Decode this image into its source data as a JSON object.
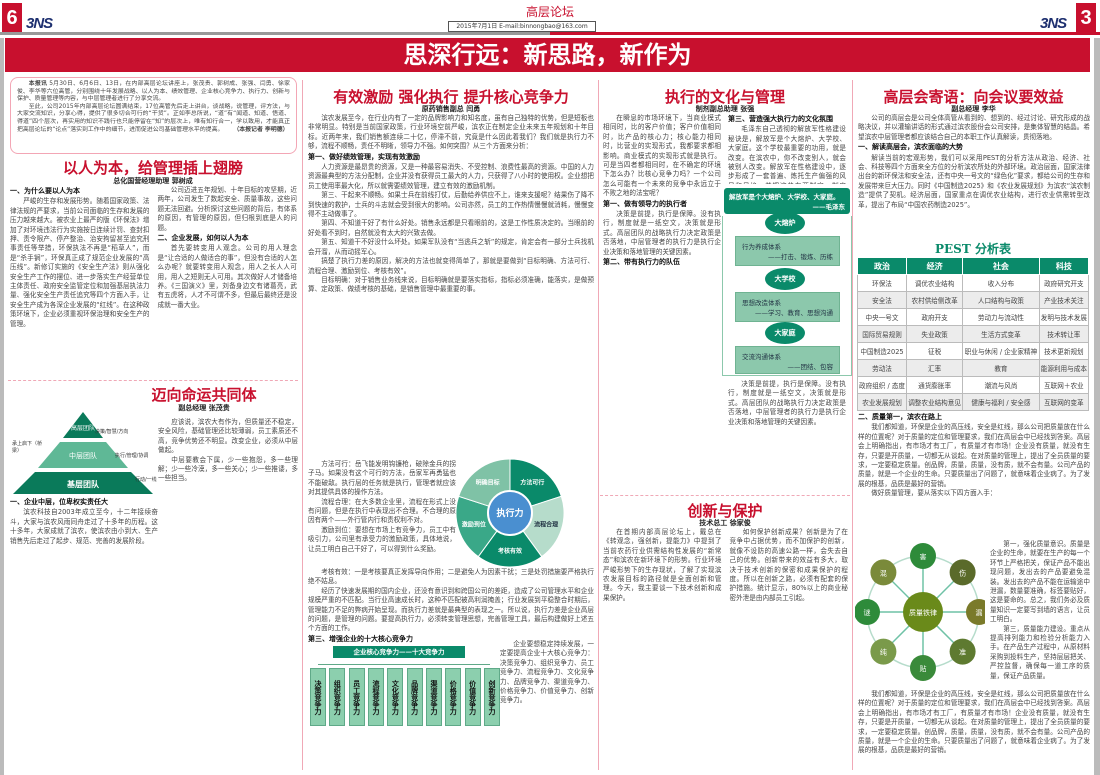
{
  "header": {
    "page_left": "6",
    "page_right": "3",
    "logo": "3NS",
    "section": "高层论坛",
    "dateline": "2015年7月1日 E-mail:binnongbao@163.com"
  },
  "banner": {
    "title": "思深行远：新思路，新作为"
  },
  "intro": {
    "lead": "本报讯",
    "p1": "5月30日、6月6日、13日，在内部高层论坛讲座上，张茂贵、郭树成、张强、闫勇、徐家俊、李华等六位高管，分别围绕十年发展战略、以人为本、绩效管理、企业核心竞争力、执行力、创新与保护、质量管理等内容，与中层管理者进行了分享交流。",
    "p2": "至此，公司2015年内部高层论坛圆满结束，17位高管先后走上讲台，谈战略，说管理，评方法，与大家交流知识，分享心得，提供了很多切合可行的“干货”。正如李总所说，“道”有“闻道、知道、悟道、得道”四个层次，再实用的知识不践行也只能停留在“知”的层次上，唯有知行合一，学以致用，才能真正把高层论坛的“论点”落实到工作中的细节，进而促进公司基础管理水平的提高。",
    "byline": "（本报记者 李明德）"
  },
  "article1": {
    "title": "以人为本，给管理插上翅膀",
    "author": "总化国营经理助理 郭树成",
    "h1": "一、为什么要以人为本",
    "p1": "严峻的生存和发展形势。随着国家政策、法律法规的严要求，当前公司面临的生存和发展的压力越来越大。被农业上最严的版《环保法》增加了对环境违法行为实施按日连续计罚、查封扣押、责令限产、停产整治、治安拘留甚至追究刑事责任等举措，环保执法不再是“稻草人”，而是“杀手锏”，环保真正成了规范企业发展的“高压线”。新修订实施的《安全生产法》则从强化安全生产工作的摆位、进一步落实生产经营单位主体责任、政府安全监管定位和加强基层执法力量、强化安全生产责任追究等四个方面入手，让安全生产成为各深企业发展的“红线”。在这种政策环境下，企业必须重视环保治理和安全生产的管理。",
    "p2": "公司迈进五年规划、十年目标的攻坚期，近两年，公司发生了数起安全、质量事故，这些问题无法回避。分析探讨这些问题的背后，有体系的原因，有管理的原因，但归根到底是人的问题。",
    "h2": "二、企业发展，如何以人为本",
    "p3": "首先要转变用人观念。公司的用人理念是“让合适的人做适合的事”，但没有合适的人怎么办呢？就要转变用人观念，用人之长人人可用，用人之短则无人可用。其次做好人才储备培养。《三国演义》里，刘备身边文有诸葛亮，武有五虎将，人才不可谓不多，但最后最终还是没成就一番大业。"
  },
  "article2": {
    "title": "迈向命运共同体",
    "author": "副总经理 张茂贵",
    "pyramid": [
      "高层团队",
      "中层团队",
      "基层团队"
    ],
    "pyramid_notes": [
      "决策/智慧/方向",
      "执行/管理/协调",
      "行动/一线"
    ],
    "pyramid_side": "承上启下（桥梁）",
    "h1": "一、企业中层，位卑权实责任大",
    "p1": "滨农科技自2003年成立至今，十二年接续奋斗，大家与滨农风雨同舟走过了十多年的历程。这十多年，大家成就了滨农，使滨农由小到大、生产销售先后走过了起步、规范、完善的发展阶段。",
    "p2": "应该说，滨农大有作为，但质量还不稳定，安全风险，基础管理还比较薄弱，员工素质还不高，竞争优势还不明显。改变企业，必须从中层做起。",
    "p3": "中层要教会下属，少一些抱怨，多一些理解；少一些冷漠，多一些关心；少一些推诿，多一些担当。"
  },
  "article3": {
    "title": "有效激励 强化执行 提升核心竞争力",
    "author": "原药销售副总 闫勇",
    "p0": "滨农发展至今，在行业内有了一定的品牌影响力和知名度，虽有自己独特的优势，但是短板也非常明显。特别是当前国家政策，行业环境空前严峻，滨农正在制定企业未来五年规划和十年目标。近两年来，我们销售额连续二十亿，停滞不前，究竟是什么因此着我们？我们就是执行力不够，流程不顺畅，责任不明晰，领导力不强。如何突围？从三个方面来分析：",
    "h1": "第一、做好绩效管理，实现有效激励",
    "p1": "人力资源是最昂贵的资源，又是一种最容易消失、不受控制、浪费性最高的资源。中国的人力资源最典型的方法分配制，企业并没有获得员工最大的人力，只获得了八小时的使用权。企业想把员工使用率最大化，所以就需要绩效管理，建立有效的激励机制。",
    "p2": "第三、干起来不顺畅。如果士兵在前线打仗，后勤给养供应不上，谁来支援呢？结果伤了降不到快速的救护，士兵的斗志就会受到很大的影响。公司亦然，员工的工作热情慢慢就消耗，慢慢变得不主动做事了。",
    "p3": "第四、不知道干好了有什么好处。销售永远都是只看眼前的，这是工作性质决定的。当眼前的好处看不到时，自然就没有太大的兴致去做。",
    "p4": "第五、知道干不好没什么坏处。如果军队没有“当逃兵之斩”的规定，肯定会有一部分士兵找机会开溜，从而动摇军心。",
    "p5": "搞楚了执行力差的原因，解决的方法也就变得简单了，那就是要做到“目标明确、方法可行、流程合理、激励到位、考核有效”。",
    "p6": "目标明确：对于销售业务线来说，目标明确就是要落实指标，指标必须准确，能落实，是做预算、定政策、做绩考核的基础，是销售管理中最重要的事。",
    "p7": "方法可行：岳飞能发明钩镰枪，破除金兵的拐子马。如果没有这个可行的方法，岳家军再勇猛也不能破敌。执行层的任务就是执行，管理者就应该对其提供具体的操作方法。",
    "p8": "流程合理：在大多数企业里，流程在形式上没有问题，但是在执行中表现出不合理。不合理的原因有两个——外行管内行和责权利不对。",
    "p9": "激励到位：要想在市场上有竞争力，员工中有吸引力，公司里有承受力的激励政策，具体地说，让员工明白自己干好了，可以得到什么奖励。",
    "p10": "考核有效：一是考核要真正发挥导向作用；二是避免人为因素干扰；三是处罚措施要严格执行绝不姑息。",
    "p11": "经历了快速发展期的国内企业，还没有意识到和跨国公司的差距，造成了公司管理水平和企业规模严重的不匹配。当行业高速成长时，这种不匹配被高利润掩盖；行业发展到平稳整合时期后，管理能力不足的弊病开始呈现。而执行力差就是最典型的表现之一。所以说，执行力差是企业高层的问题，是管理的问题。要提高执行力，必须转变管理思想，完善管理工具，最后构建做好上述五个方面的工作。",
    "h3": "第三、增强企业的十大核心竞争力",
    "p12": "企业要想稳定持续发展，一定要提高企业十大核心竞争力：决策竞争力、组织竞争力、员工竞争力、流程竞争力、文化竞争力、品牌竞争力、渠道竞争力、价格竞争力、价值竞争力、创新竞争力。",
    "wheel_center": "执行力",
    "wheel": [
      "方法可行",
      "流程合理",
      "考核有效",
      "激励到位",
      "明确目标"
    ],
    "tree_title": "企业核心竞争力——十大竞争力",
    "tree": [
      "决策竞争力",
      "组织竞争力",
      "员工竞争力",
      "流程竞争力",
      "文化竞争力",
      "品牌竞争力",
      "渠道竞争力",
      "价格竞争力",
      "价值竞争力",
      "创新竞争力"
    ]
  },
  "article4": {
    "title": "执行的文化与管理",
    "author": "制剂副总助理 张强",
    "p1": "在瞬息的市场环境下，当商业模式相同时，比的客户价值；客户价值相同时，比产品的核心力；核心能力相同时，比营业的实现形式，我都要求都相影响。商业模式的实现形式就是执行。可是当四者都相同时，在不确定的环境下怎么办？比核心竞争力吗？一个公司怎么可能有一个未来的竞争中永远立于不败之地的法宝呢？",
    "h1": "第一、做有领导力的执行者",
    "p2": "决策是前提，执行是保障。没有执行，制度就是一纸空文，决策就是形式。高层团队的战略执行力决定政策是否落地，中层管理者的执行力是执行企业决策和落地管理的关键因素。",
    "h2": "第二、带有执行力的队伍",
    "h3": "第三、营造强大执行力的文化氛围",
    "p3": "毛泽东自己透彻的解放军性格建设秘诀是，解放军是个大熔炉、大学校、大家庭。这个学校最重要的功用，就是改变。在滨农中，你不改变别人，就会被别人改变。解放军在性格建设中，逐步形成了一套普遍、炼托生产偏强的风风和风格，并把这些东西制定、制度化。",
    "quote": "解放军是个大熔炉、大学校、大家庭。",
    "quote_by": "——毛泽东",
    "nodes": [
      "大熔炉",
      "大学校",
      "大家庭"
    ],
    "boxes": [
      [
        "行为养成体系",
        "——打击、锻炼、历练"
      ],
      [
        "思想改造体系",
        "——学习、教育、思想沟通"
      ],
      [
        "交流沟通体系",
        "——团结、包容"
      ]
    ]
  },
  "article5": {
    "title": "创新与保护",
    "author": "技术总工 徐家俊",
    "p1": "在首期内部高层论坛上，戴总在《转观念，强创新，提能力》中提到了当前农药行业供需结构性发展的“新常态”和滨农在新环境下的形势。行业环境严峻形势下的生存现状，了解了实现滨农发展目标的路径就是全面创新和管理。今天，我主要谈一下技术创新和成果保护。",
    "p2": "如何保护创新成果？创新是为了在竞争中占据优势，而不加保护的创新，就像不设防的高速公路一样，会失去自己的优势。创新带来的效益有多大，取决于技术创新的保密和成果保护的程度。所以在创新之路，必须有配套的保护措施。统计显示，80%以上的商业秘密外泄是由内部员工引起。"
  },
  "article6": {
    "title": "高层会寄语：向会议要效益",
    "author": "副总经理 李华",
    "p1": "公司的高层会是公司全体高管从看到的、想到的、经过讨论、研究形成的战略决议，并以灌输讲话的形式通过滨农股份会公司安排，是集体智慧的结晶。希望滨农中层管理者都应该结合自己的本职工作认真解读，贯彻落地。",
    "h1": "一、解读高层会，滨农面临的大势",
    "p2": "解读当前的宏观形势，我们可以采用PEST的分析方法从政治、经济、社会、科技等四个方面来全方位的分析滨农所处的外部环境。政治层面，国家法律出台的新环保法和安全法，还有中央一号文的“绿色化”要求，都给公司的生存和发展带来巨大压力。同时《中国制造2025》和《农业发展规划》为滨农“滨农制造”提供了契机。经济层面，国家重点在调优农业结构，进行农业供需转型改革，提出了布局“中国农药制造2025”。",
    "pest_title": "PEST 分析表",
    "pest_head": [
      "政治",
      "经济",
      "社会",
      "科技"
    ],
    "pest_rows": [
      [
        "环保法",
        "调优农业结构",
        "收入分布",
        "政府研究开支"
      ],
      [
        "安全法",
        "农村供给侧改革",
        "人口结构与政策",
        "产业技术关注"
      ],
      [
        "中央一号文",
        "政府开支",
        "劳动力与流动性",
        "发明与技术发展"
      ],
      [
        "国际贸易规则",
        "失业政策",
        "生活方式变革",
        "技术转让率"
      ],
      [
        "中国制造2025",
        "征税",
        "职业与休闲 / 企业家精神",
        "技术更新规划"
      ],
      [
        "劳动法",
        "汇率",
        "教育",
        "能源利用与成本"
      ],
      [
        "政府组织 / 态度",
        "通货膨胀率",
        "潮流与风尚",
        "互联网＋农业"
      ],
      [
        "农业发展规划",
        "调整农业结构意见",
        "健康与福利 / 安全感",
        "互联网的变革"
      ]
    ],
    "h2": "二、质量第一，滨农在路上",
    "p3": "我们都知道，环保是企业的高压线，安全是红线，那么公司把质量放在什么样的位置呢？对于质量的定位和管理要求，我们在高层会中已经找到答案。高层会上明确指出，有市场才有工厂，有质量才有市场！企业没有质量，就没有生存，只要是开质量，一切都无从谈起。在对质量的管理上，提出了全员质量的要求，一定要稳定质量。创品牌，质量，质量，没有质，就不会有量。公司产品的质量，就是一个企业的生命。只要质量出了问题了，就意味着企业病了。为了发展的根基，品质是最好的营销。",
    "p4": "做好质量管理，要从落实以下四方面入手：",
    "p5": "第一，强化质量意识。质量是企业的生命，就要在生产的每一个环节上严格把关，保证产品不能出现问题，发出去的产品要避免混装。发出去的产品不能在运输途中泄漏，数量要准确，标签要贴好，这是要命的。总之，我们务必及质量知识一定要写到墙的语言，让员工明白。",
    "p6": "第三，质量能力建设。重点从提高排列能力和检验分析能力入手。在产品生产过程中，从原材料采购到投料生产，坚持层层把关、严控监督，确保每一道工序的质量，保证产品质量。",
    "wheel_center": "质量铁律",
    "wheel": [
      "害",
      "伤",
      "漏",
      "准",
      "贴",
      "纯",
      "谜",
      "混"
    ]
  }
}
